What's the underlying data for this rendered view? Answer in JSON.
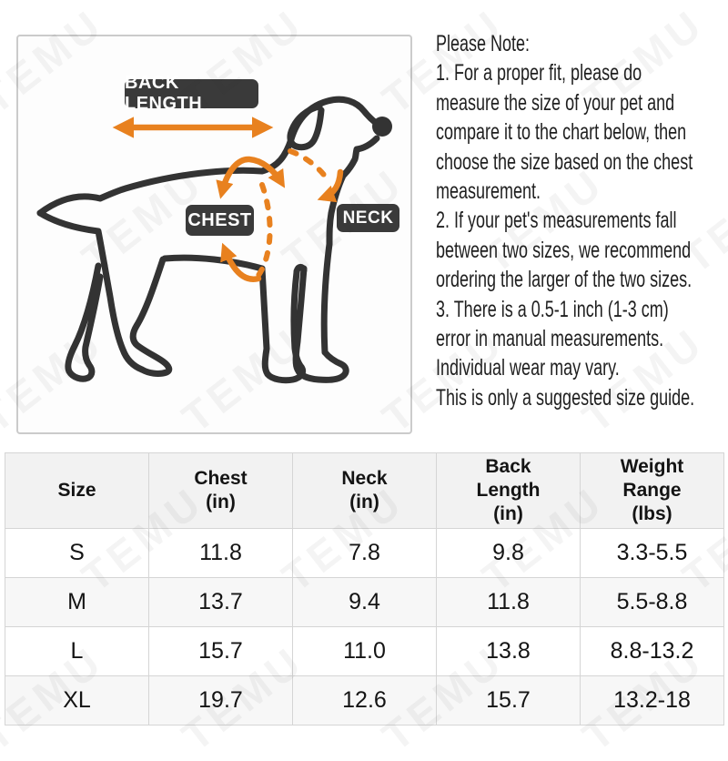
{
  "diagram": {
    "back_length_label": "BACK LENGTH",
    "chest_label": "CHEST",
    "neck_label": "NECK",
    "colors": {
      "accent_orange": "#E8811F",
      "outline_dark": "#333333",
      "label_background": "#3A3A3A"
    }
  },
  "note": {
    "lines": [
      "Please Note:",
      "1. For a proper fit, please do",
      "measure the size of your pet and",
      "compare it to the chart below, then",
      "choose the size based on the chest",
      "measurement.",
      "2. If your pet's measurements fall",
      "between two sizes, we recommend",
      "ordering the larger of the two sizes.",
      "3. There is a 0.5-1 inch (1-3 cm)",
      "error in manual measurements.",
      "Individual wear may vary.",
      "This is only a suggested size guide."
    ]
  },
  "table": {
    "headers": [
      [
        "Size"
      ],
      [
        "Chest",
        "(in)"
      ],
      [
        "Neck",
        "(in)"
      ],
      [
        "Back",
        "Length",
        "(in)"
      ],
      [
        "Weight",
        "Range",
        "(lbs)"
      ]
    ],
    "rows": [
      {
        "size": "S",
        "chest": "11.8",
        "neck": "7.8",
        "back_length": "9.8",
        "weight": "3.3-5.5"
      },
      {
        "size": "M",
        "chest": "13.7",
        "neck": "9.4",
        "back_length": "11.8",
        "weight": "5.5-8.8"
      },
      {
        "size": "L",
        "chest": "15.7",
        "neck": "11.0",
        "back_length": "13.8",
        "weight": "8.8-13.2"
      },
      {
        "size": "XL",
        "chest": "19.7",
        "neck": "12.6",
        "back_length": "15.7",
        "weight": "13.2-18"
      }
    ]
  },
  "watermark": {
    "text": "TEMU"
  }
}
